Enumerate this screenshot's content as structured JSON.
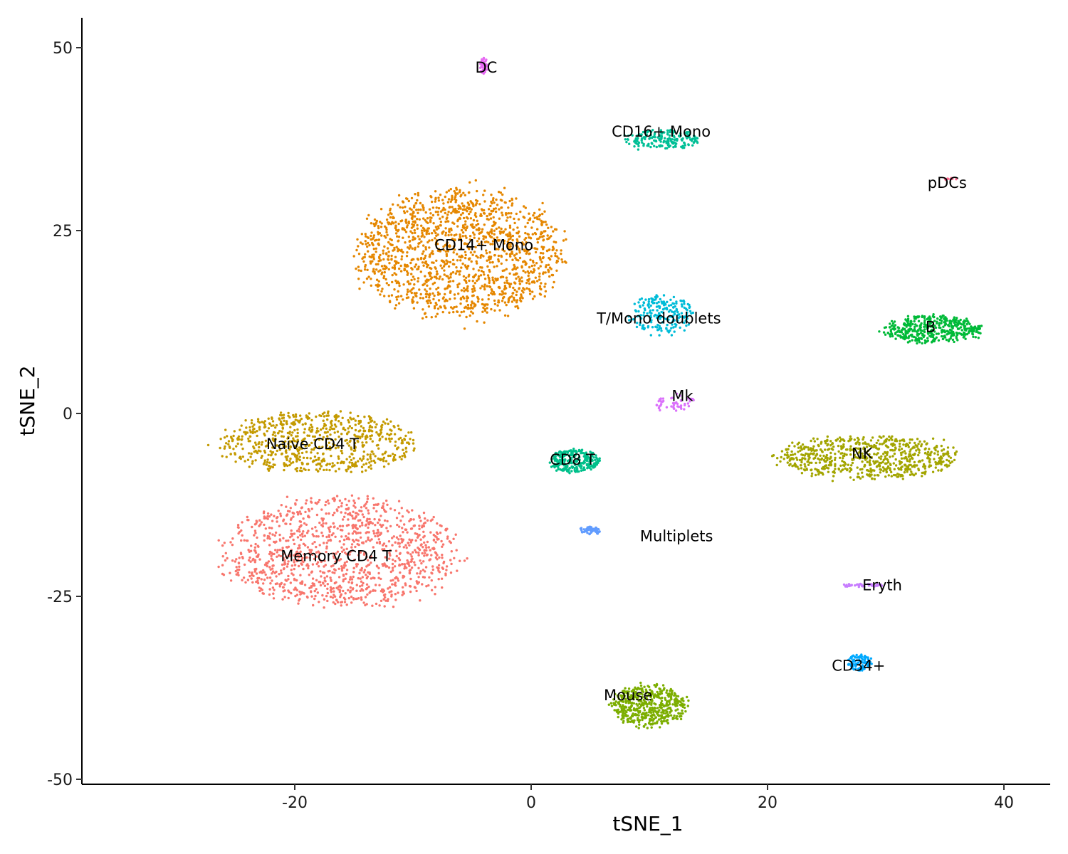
{
  "chart_data": {
    "type": "scatter",
    "title": "",
    "xlabel": "tSNE_1",
    "ylabel": "tSNE_2",
    "xlim": [
      -38,
      44
    ],
    "ylim": [
      -51,
      54
    ],
    "xticks": [
      -20,
      0,
      20,
      40
    ],
    "xtick_labels": [
      "-20",
      "0",
      "20",
      "40"
    ],
    "yticks": [
      -50,
      -25,
      0,
      25,
      50
    ],
    "ytick_labels": [
      "-50",
      "-25",
      "0",
      "25",
      "50"
    ],
    "grid": false,
    "legend": "none",
    "point_colors_note": "ggplot default hue palette",
    "clusters": [
      {
        "name": "Memory CD4 T",
        "color": "#F8766D",
        "center": [
          -16,
          -19
        ],
        "spread": [
          8.5,
          6.5
        ],
        "count": 1200,
        "label_at": [
          -16.5,
          -19.5
        ]
      },
      {
        "name": "Naive CD4 T",
        "color": "#C49A00",
        "center": [
          -18,
          -4
        ],
        "spread": [
          7,
          3.6
        ],
        "count": 700,
        "label_at": [
          -18.5,
          -4.2
        ]
      },
      {
        "name": "CD14+ Mono",
        "color": "#E58700",
        "center": [
          -6,
          22
        ],
        "spread": [
          7.5,
          7.5
        ],
        "count": 1500,
        "label_at": [
          -4,
          23
        ]
      },
      {
        "name": "CD16+ Mono",
        "color": "#00BF96",
        "center": [
          11,
          37.5
        ],
        "spread": [
          2.8,
          1.2
        ],
        "count": 180,
        "label_at": [
          11,
          38.5
        ]
      },
      {
        "name": "DC",
        "color": "#E76BF3",
        "center": [
          -4,
          47.5
        ],
        "spread": [
          0.3,
          1
        ],
        "count": 40,
        "label_at": [
          -3.8,
          47.3
        ]
      },
      {
        "name": "pDCs",
        "color": "#FF6C91",
        "center": [
          35.5,
          32
        ],
        "spread": [
          0.4,
          0.15
        ],
        "count": 10,
        "label_at": [
          35.2,
          31.5
        ]
      },
      {
        "name": "T/Mono doublets",
        "color": "#00BCD8",
        "center": [
          11,
          13.5
        ],
        "spread": [
          2.3,
          2.3
        ],
        "count": 200,
        "label_at": [
          10.8,
          13
        ]
      },
      {
        "name": "B",
        "color": "#00BA38",
        "center": [
          34,
          11.5
        ],
        "spread": [
          3.5,
          1.7
        ],
        "count": 420,
        "label_at": [
          33.8,
          11.8
        ]
      },
      {
        "name": "NK",
        "color": "#A3A500",
        "center": [
          28.5,
          -6
        ],
        "spread": [
          6.5,
          2.6
        ],
        "count": 700,
        "label_at": [
          28,
          -5.5
        ]
      },
      {
        "name": "CD8 T",
        "color": "#00C08B",
        "center": [
          3.7,
          -6.5
        ],
        "spread": [
          1.8,
          1.4
        ],
        "count": 260,
        "label_at": [
          3.5,
          -6.3
        ]
      },
      {
        "name": "Mk",
        "color": "#DB72FB",
        "center": [
          12,
          1.5
        ],
        "spread": [
          1.5,
          1
        ],
        "count": 50,
        "label_at": [
          12.8,
          2.4
        ]
      },
      {
        "name": "Multiplets",
        "color": "#619CFF",
        "center": [
          5,
          -16
        ],
        "spread": [
          0.8,
          0.5
        ],
        "count": 50,
        "label_at": [
          12.3,
          -16.8
        ]
      },
      {
        "name": "Eryth",
        "color": "#C77CFF",
        "center": [
          28,
          -23.5
        ],
        "spread": [
          1.5,
          0.2
        ],
        "count": 40,
        "label_at": [
          29.7,
          -23.5
        ]
      },
      {
        "name": "CD34+",
        "color": "#00A9FF",
        "center": [
          27.8,
          -34
        ],
        "spread": [
          0.9,
          1
        ],
        "count": 90,
        "label_at": [
          27.7,
          -34.5
        ]
      },
      {
        "name": "Mouse",
        "color": "#7CAE00",
        "center": [
          10,
          -40
        ],
        "spread": [
          2.7,
          2.5
        ],
        "count": 500,
        "label_at": [
          8.2,
          -38.5
        ]
      }
    ]
  }
}
